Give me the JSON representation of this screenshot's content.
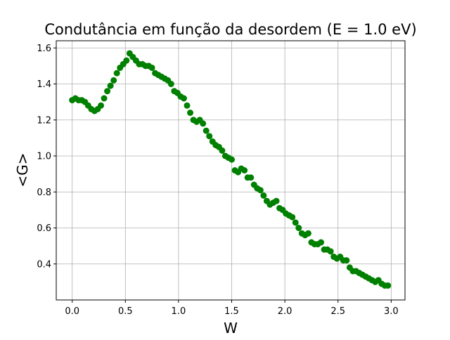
{
  "chart_data": {
    "type": "scatter",
    "title": "Condutância em função da desordem (E = 1.0 eV)",
    "xlabel": "W",
    "ylabel": "<G>",
    "xlim": [
      -0.15,
      3.13
    ],
    "ylim": [
      0.2,
      1.64
    ],
    "xticks": [
      0.0,
      0.5,
      1.0,
      1.5,
      2.0,
      2.5,
      3.0
    ],
    "yticks": [
      0.4,
      0.6,
      0.8,
      1.0,
      1.2,
      1.4,
      1.6
    ],
    "xtick_labels": [
      "0.0",
      "0.5",
      "1.0",
      "1.5",
      "2.0",
      "2.5",
      "3.0"
    ],
    "ytick_labels": [
      "0.4",
      "0.6",
      "0.8",
      "1.0",
      "1.2",
      "1.4",
      "1.6"
    ],
    "grid": true,
    "marker_color": "#008000",
    "series": [
      {
        "x": [
          0.0,
          0.03,
          0.06,
          0.09,
          0.12,
          0.15,
          0.18,
          0.21,
          0.24,
          0.27,
          0.3,
          0.33,
          0.36,
          0.39,
          0.42,
          0.45,
          0.48,
          0.51,
          0.54,
          0.57,
          0.6,
          0.63,
          0.66,
          0.69,
          0.72,
          0.75,
          0.78,
          0.81,
          0.84,
          0.87,
          0.9,
          0.93,
          0.96,
          0.99,
          1.02,
          1.05,
          1.08,
          1.11,
          1.14,
          1.17,
          1.2,
          1.23,
          1.26,
          1.29,
          1.32,
          1.35,
          1.38,
          1.41,
          1.44,
          1.47,
          1.5,
          1.53,
          1.56,
          1.59,
          1.62,
          1.65,
          1.68,
          1.71,
          1.74,
          1.77,
          1.8,
          1.83,
          1.86,
          1.89,
          1.92,
          1.95,
          1.98,
          2.01,
          2.04,
          2.07,
          2.1,
          2.13,
          2.16,
          2.19,
          2.22,
          2.25,
          2.28,
          2.31,
          2.34,
          2.37,
          2.4,
          2.43,
          2.46,
          2.49,
          2.52,
          2.55,
          2.58,
          2.61,
          2.64,
          2.67,
          2.7,
          2.73,
          2.76,
          2.79,
          2.82,
          2.85,
          2.88,
          2.91,
          2.94,
          2.97
        ],
        "y": [
          1.31,
          1.32,
          1.31,
          1.31,
          1.3,
          1.28,
          1.26,
          1.25,
          1.26,
          1.28,
          1.32,
          1.36,
          1.39,
          1.42,
          1.46,
          1.49,
          1.51,
          1.53,
          1.57,
          1.55,
          1.53,
          1.51,
          1.51,
          1.5,
          1.5,
          1.49,
          1.46,
          1.45,
          1.44,
          1.43,
          1.42,
          1.4,
          1.36,
          1.35,
          1.33,
          1.32,
          1.28,
          1.24,
          1.2,
          1.19,
          1.2,
          1.18,
          1.14,
          1.11,
          1.08,
          1.06,
          1.05,
          1.03,
          1.0,
          0.99,
          0.98,
          0.92,
          0.91,
          0.93,
          0.92,
          0.88,
          0.88,
          0.84,
          0.82,
          0.81,
          0.78,
          0.75,
          0.73,
          0.74,
          0.75,
          0.71,
          0.7,
          0.68,
          0.67,
          0.66,
          0.63,
          0.6,
          0.57,
          0.56,
          0.57,
          0.52,
          0.51,
          0.51,
          0.52,
          0.48,
          0.48,
          0.47,
          0.44,
          0.43,
          0.44,
          0.42,
          0.42,
          0.38,
          0.36,
          0.36,
          0.35,
          0.34,
          0.33,
          0.32,
          0.31,
          0.3,
          0.31,
          0.29,
          0.28,
          0.28
        ]
      }
    ]
  }
}
